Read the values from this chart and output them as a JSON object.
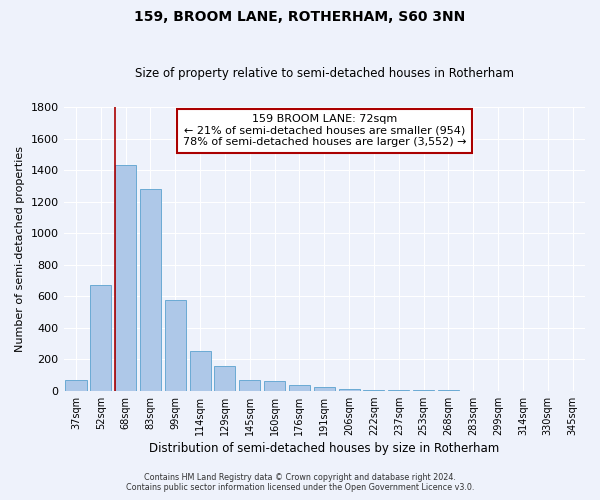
{
  "title": "159, BROOM LANE, ROTHERHAM, S60 3NN",
  "subtitle": "Size of property relative to semi-detached houses in Rotherham",
  "xlabel": "Distribution of semi-detached houses by size in Rotherham",
  "ylabel": "Number of semi-detached properties",
  "bar_labels": [
    "37sqm",
    "52sqm",
    "68sqm",
    "83sqm",
    "99sqm",
    "114sqm",
    "129sqm",
    "145sqm",
    "160sqm",
    "176sqm",
    "191sqm",
    "206sqm",
    "222sqm",
    "237sqm",
    "253sqm",
    "268sqm",
    "283sqm",
    "299sqm",
    "314sqm",
    "330sqm",
    "345sqm"
  ],
  "bar_values": [
    67,
    670,
    1430,
    1280,
    575,
    255,
    155,
    65,
    60,
    35,
    25,
    10,
    5,
    3,
    2,
    2,
    1,
    1,
    0,
    0,
    0
  ],
  "bar_color": "#aec8e8",
  "bar_edge_color": "#6aaad4",
  "property_line_color": "#aa0000",
  "property_line_bar_index": 2,
  "annotation_title": "159 BROOM LANE: 72sqm",
  "annotation_line1": "← 21% of semi-detached houses are smaller (954)",
  "annotation_line2": "78% of semi-detached houses are larger (3,552) →",
  "annotation_box_color": "#ffffff",
  "annotation_box_edge": "#aa0000",
  "ylim": [
    0,
    1800
  ],
  "yticks": [
    0,
    200,
    400,
    600,
    800,
    1000,
    1200,
    1400,
    1600,
    1800
  ],
  "bg_color": "#eef2fb",
  "grid_color": "#ffffff",
  "footer1": "Contains HM Land Registry data © Crown copyright and database right 2024.",
  "footer2": "Contains public sector information licensed under the Open Government Licence v3.0."
}
